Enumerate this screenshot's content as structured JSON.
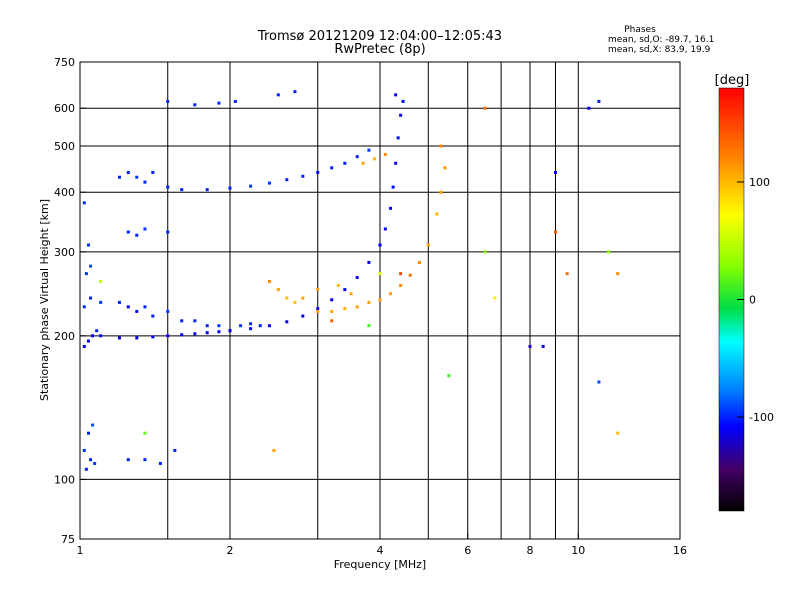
{
  "chart_data": {
    "type": "scatter",
    "title": "Tromsø 20121209 12:04:00–12:05:43",
    "subtitle": "RwPretec (8p)",
    "xlabel": "Frequency [MHz]",
    "ylabel": "Stationary phase Virtual Height [km]",
    "x_scale": "log",
    "y_scale": "log",
    "xlim": [
      1,
      16
    ],
    "ylim": [
      75,
      750
    ],
    "x_ticks": [
      1,
      2,
      4,
      6,
      8,
      10,
      16
    ],
    "y_ticks": [
      75,
      100,
      200,
      300,
      400,
      500,
      600,
      750
    ],
    "x_grid": [
      1.5,
      2,
      3,
      4,
      5,
      6,
      7,
      8,
      9,
      10
    ],
    "y_grid": [
      100,
      200,
      300,
      400,
      500,
      600
    ],
    "grid": true,
    "stats": {
      "heading": "Phases",
      "line1": "mean, sd,O: -89.7, 16.1",
      "line2": "mean, sd,X:  83.9, 19.9"
    },
    "colorbar": {
      "label": "[deg]",
      "range": [
        -180,
        180
      ],
      "ticks": [
        100,
        0,
        -100
      ]
    },
    "series": [
      {
        "points": [
          [
            1.02,
            190,
            -110
          ],
          [
            1.04,
            195,
            -110
          ],
          [
            1.06,
            200,
            -110
          ],
          [
            1.08,
            205,
            -100
          ],
          [
            1.1,
            200,
            -105
          ],
          [
            1.02,
            230,
            -100
          ],
          [
            1.05,
            240,
            -100
          ],
          [
            1.1,
            235,
            -95
          ],
          [
            1.03,
            270,
            -95
          ],
          [
            1.05,
            280,
            -90
          ],
          [
            1.02,
            380,
            -100
          ],
          [
            1.04,
            310,
            -95
          ],
          [
            1.03,
            105,
            -100
          ],
          [
            1.05,
            110,
            -100
          ],
          [
            1.07,
            108,
            -95
          ],
          [
            1.04,
            125,
            -100
          ],
          [
            1.06,
            130,
            -90
          ],
          [
            1.02,
            115,
            -95
          ],
          [
            1.2,
            235,
            -100
          ],
          [
            1.25,
            230,
            -110
          ],
          [
            1.3,
            225,
            -105
          ],
          [
            1.35,
            230,
            -100
          ],
          [
            1.4,
            220,
            -100
          ],
          [
            1.5,
            225,
            -95
          ],
          [
            1.6,
            215,
            -100
          ],
          [
            1.7,
            215,
            -100
          ],
          [
            1.8,
            210,
            -100
          ],
          [
            1.9,
            210,
            -95
          ],
          [
            2.0,
            205,
            -100
          ],
          [
            2.1,
            210,
            -95
          ],
          [
            2.2,
            212,
            -100
          ],
          [
            2.3,
            210,
            -100
          ],
          [
            1.2,
            198,
            -110
          ],
          [
            1.3,
            198,
            -110
          ],
          [
            1.4,
            199,
            -110
          ],
          [
            1.5,
            200,
            -110
          ],
          [
            1.6,
            201,
            -110
          ],
          [
            1.7,
            202,
            -110
          ],
          [
            1.8,
            203,
            -110
          ],
          [
            1.9,
            204,
            -110
          ],
          [
            2.0,
            205,
            -110
          ],
          [
            2.2,
            207,
            -110
          ],
          [
            2.4,
            210,
            -110
          ],
          [
            2.6,
            214,
            -110
          ],
          [
            2.8,
            220,
            -110
          ],
          [
            3.0,
            228,
            -110
          ],
          [
            3.2,
            238,
            -110
          ],
          [
            3.4,
            250,
            -110
          ],
          [
            3.6,
            265,
            -110
          ],
          [
            3.8,
            285,
            -110
          ],
          [
            4.0,
            310,
            -110
          ],
          [
            4.1,
            335,
            -110
          ],
          [
            4.2,
            370,
            -110
          ],
          [
            4.25,
            410,
            -105
          ],
          [
            4.3,
            460,
            -110
          ],
          [
            4.35,
            520,
            -105
          ],
          [
            4.4,
            580,
            -110
          ],
          [
            4.45,
            620,
            -105
          ],
          [
            4.3,
            640,
            -110
          ],
          [
            1.2,
            430,
            -100
          ],
          [
            1.25,
            440,
            -100
          ],
          [
            1.3,
            430,
            -95
          ],
          [
            1.35,
            420,
            -100
          ],
          [
            1.4,
            440,
            -100
          ],
          [
            1.5,
            410,
            -100
          ],
          [
            1.6,
            405,
            -100
          ],
          [
            1.8,
            405,
            -100
          ],
          [
            2.0,
            408,
            -100
          ],
          [
            2.2,
            412,
            -95
          ],
          [
            2.4,
            418,
            -95
          ],
          [
            2.6,
            425,
            -100
          ],
          [
            2.8,
            432,
            -100
          ],
          [
            3.0,
            440,
            -105
          ],
          [
            3.2,
            450,
            -100
          ],
          [
            3.4,
            460,
            -100
          ],
          [
            3.6,
            475,
            -100
          ],
          [
            3.8,
            490,
            -95
          ],
          [
            1.25,
            330,
            -100
          ],
          [
            1.3,
            325,
            -100
          ],
          [
            1.35,
            335,
            -95
          ],
          [
            1.5,
            330,
            -100
          ],
          [
            1.5,
            620,
            -100
          ],
          [
            1.7,
            610,
            -100
          ],
          [
            1.9,
            615,
            -100
          ],
          [
            2.05,
            620,
            -100
          ],
          [
            2.5,
            640,
            -100
          ],
          [
            2.7,
            650,
            -100
          ],
          [
            1.25,
            110,
            -100
          ],
          [
            1.35,
            110,
            -100
          ],
          [
            1.45,
            108,
            -100
          ],
          [
            1.55,
            115,
            -100
          ]
        ]
      },
      {
        "points": [
          [
            2.4,
            260,
            120
          ],
          [
            2.5,
            250,
            110
          ],
          [
            2.6,
            240,
            100
          ],
          [
            2.7,
            235,
            95
          ],
          [
            2.8,
            240,
            110
          ],
          [
            3.0,
            225,
            110
          ],
          [
            3.2,
            225,
            105
          ],
          [
            3.4,
            228,
            105
          ],
          [
            3.6,
            230,
            110
          ],
          [
            3.8,
            235,
            110
          ],
          [
            4.0,
            238,
            110
          ],
          [
            4.2,
            245,
            110
          ],
          [
            4.4,
            255,
            120
          ],
          [
            4.6,
            268,
            130
          ],
          [
            4.8,
            285,
            120
          ],
          [
            5.0,
            310,
            110
          ],
          [
            5.2,
            360,
            100
          ],
          [
            5.3,
            400,
            110
          ],
          [
            5.4,
            450,
            115
          ],
          [
            5.3,
            500,
            120
          ],
          [
            3.0,
            250,
            110
          ],
          [
            3.3,
            255,
            100
          ],
          [
            3.5,
            245,
            110
          ],
          [
            3.7,
            460,
            110
          ],
          [
            3.9,
            470,
            100
          ],
          [
            4.1,
            480,
            120
          ],
          [
            2.45,
            115,
            110
          ],
          [
            3.2,
            215,
            140
          ],
          [
            4.4,
            270,
            150
          ]
        ]
      },
      {
        "points": [
          [
            1.1,
            260,
            50
          ],
          [
            1.35,
            125,
            20
          ],
          [
            3.8,
            210,
            10
          ],
          [
            4.0,
            270,
            60
          ]
        ]
      },
      {
        "points": [
          [
            6.5,
            600,
            130
          ],
          [
            6.5,
            300,
            30
          ],
          [
            9.0,
            440,
            -110
          ],
          [
            9.0,
            330,
            140
          ],
          [
            9.5,
            270,
            130
          ],
          [
            10.5,
            600,
            -110
          ],
          [
            11.0,
            620,
            -100
          ],
          [
            11.5,
            300,
            30
          ],
          [
            12.0,
            270,
            120
          ],
          [
            8.5,
            190,
            -110
          ],
          [
            8.0,
            190,
            -120
          ],
          [
            11.0,
            160,
            -90
          ],
          [
            12.0,
            125,
            100
          ],
          [
            6.8,
            240,
            80
          ],
          [
            5.5,
            165,
            10
          ]
        ]
      }
    ]
  }
}
